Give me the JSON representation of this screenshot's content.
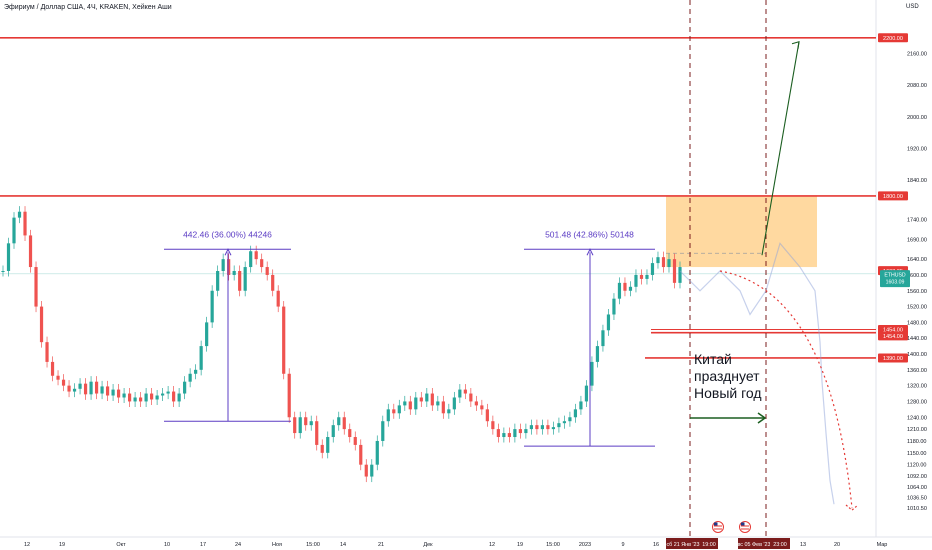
{
  "header": {
    "title": "Эфириум / Доллар США, 4Ч, KRAKEN, Хейкен Аши"
  },
  "axis": {
    "currency": "USD"
  },
  "chart_data": {
    "type": "line",
    "title": "Эфириум / Доллар США, 4Ч, KRAKEN, Хейкен Аши",
    "symbol": "ETHUSD",
    "ylim": [
      975,
      2245
    ],
    "y_ticks": [
      1010.5,
      1036.5,
      1064.0,
      1092.0,
      1120.0,
      1150.0,
      1180.0,
      1210.0,
      1240.0,
      1280.0,
      1320.0,
      1360.0,
      1400.0,
      1440.0,
      1480.0,
      1520.0,
      1560.0,
      1600.0,
      1640.0,
      1690.0,
      1740.0,
      1840.0,
      1920.0,
      2000.0,
      2080.0,
      2160.0
    ],
    "x_ticks": [
      "12",
      "19",
      "Окт",
      "10",
      "17",
      "24",
      "Ноя",
      "15:00",
      "14",
      "21",
      "Дек",
      "12",
      "19",
      "15:00",
      "2023",
      "9",
      "16",
      "23",
      "30",
      "6",
      "13",
      "20",
      "Мар"
    ],
    "price_labels": [
      {
        "label": "2200.00",
        "value": 2200,
        "color": "#e53935"
      },
      {
        "label": "1800.00",
        "value": 1800,
        "color": "#e53935"
      },
      {
        "label": "1603.35",
        "value": 1611,
        "color": "#e53935"
      },
      {
        "label": "1454.00",
        "value": 1462,
        "color": "#e53935"
      },
      {
        "label": "1454.00",
        "value": 1446,
        "color": "#e53935"
      },
      {
        "label": "1390.00",
        "value": 1390,
        "color": "#e53935"
      }
    ],
    "current": {
      "symbol": "ETHUSD",
      "price": "1603.09",
      "countdown": "01:59:15",
      "value": 1592
    },
    "horizontal_levels": [
      2200,
      1800,
      1454,
      1390
    ],
    "time_labels": [
      "сб 21 Янв '23",
      "19:00",
      "вс 05 Фев '23",
      "23:00"
    ],
    "measures": [
      {
        "label": "442.46 (36.00%) 44246",
        "high": 1665,
        "low": 1230
      },
      {
        "label": "501.48 (42.86%) 50148",
        "high": 1665,
        "low": 1167
      }
    ],
    "annotation": [
      "Китай",
      "празднует",
      "Новый год"
    ],
    "zone": {
      "low": 1620,
      "high": 1800,
      "color": "#ffcc80"
    },
    "closes": [
      1610,
      1680,
      1745,
      1760,
      1700,
      1620,
      1520,
      1430,
      1380,
      1345,
      1335,
      1320,
      1305,
      1312,
      1325,
      1298,
      1330,
      1300,
      1318,
      1295,
      1310,
      1290,
      1300,
      1280,
      1290,
      1280,
      1300,
      1285,
      1295,
      1300,
      1305,
      1280,
      1300,
      1330,
      1350,
      1360,
      1420,
      1480,
      1560,
      1610,
      1640,
      1600,
      1610,
      1560,
      1620,
      1660,
      1640,
      1620,
      1600,
      1560,
      1520,
      1350,
      1240,
      1200,
      1240,
      1220,
      1230,
      1170,
      1150,
      1190,
      1220,
      1240,
      1210,
      1190,
      1170,
      1120,
      1090,
      1120,
      1180,
      1230,
      1260,
      1250,
      1270,
      1280,
      1260,
      1290,
      1280,
      1300,
      1270,
      1280,
      1250,
      1260,
      1290,
      1310,
      1300,
      1280,
      1270,
      1260,
      1230,
      1210,
      1190,
      1200,
      1190,
      1210,
      1200,
      1210,
      1220,
      1210,
      1220,
      1210,
      1215,
      1225,
      1230,
      1240,
      1260,
      1280,
      1320,
      1380,
      1420,
      1460,
      1500,
      1540,
      1580,
      1560,
      1570,
      1600,
      1590,
      1600,
      1630,
      1645,
      1620,
      1640,
      1580,
      1620
    ],
    "forecast_up": [
      1650,
      2190
    ]
  }
}
